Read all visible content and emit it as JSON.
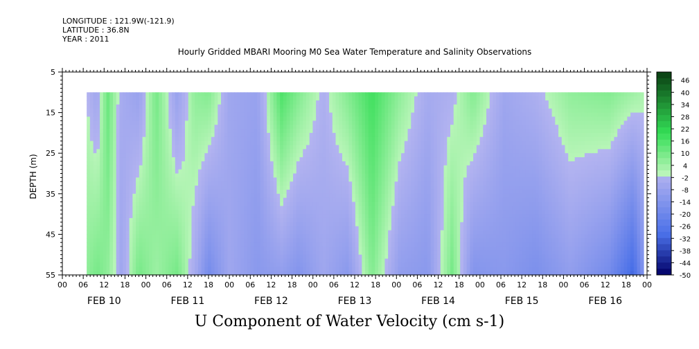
{
  "header": {
    "longitude": "LONGITUDE : 121.9W(-121.9)",
    "latitude": "LATITUDE : 36.8N",
    "year": "YEAR : 2011"
  },
  "chart_data": {
    "type": "heatmap",
    "title": "Hourly Gridded MBARI Mooring M0 Sea Water Temperature and Salinity Observations",
    "footer": "U Component of Water Velocity (cm s-1)",
    "ylabel": "DEPTH (m)",
    "xlim": [
      "2011-02-10 00:00",
      "2011-02-17 00:00"
    ],
    "ylim": [
      5,
      55
    ],
    "y_inverted": true,
    "y_ticks": [
      "5",
      "15",
      "25",
      "35",
      "45",
      "55"
    ],
    "x_hour_labels": [
      "00",
      "06",
      "12",
      "18",
      "00",
      "06",
      "12",
      "18",
      "00",
      "06",
      "12",
      "18",
      "00",
      "06",
      "12",
      "18",
      "00",
      "06",
      "12",
      "18",
      "00",
      "06",
      "12",
      "18",
      "00",
      "06",
      "12",
      "18",
      "00"
    ],
    "x_day_labels": [
      "FEB 10",
      "FEB 11",
      "FEB 12",
      "FEB 13",
      "FEB 14",
      "FEB 15",
      "FEB 16"
    ],
    "data_start": "2011-02-10 07:00",
    "data_end": "2011-02-16 23:00",
    "data_depth_range": [
      10,
      55
    ],
    "colorbar": {
      "min": -50,
      "max": 50,
      "step": 6,
      "labels": [
        "46",
        "40",
        "34",
        "28",
        "22",
        "16",
        "10",
        "4",
        "-2",
        "-8",
        "-14",
        "-20",
        "-26",
        "-32",
        "-38",
        "-44",
        "-50"
      ]
    },
    "colors": {
      "positive_light": "#b8f5b8",
      "positive_mid": "#33dd55",
      "positive_dark": "#0a3d12",
      "negative_light": "#b4b4f0",
      "negative_mid": "#4a70e8",
      "negative_dark": "#000066"
    },
    "column_profiles_cm_s": [
      {
        "time": "2011-02-10 07:00",
        "surface": 0,
        "bottom": 6
      },
      {
        "time": "2011-02-10 10:00",
        "surface": -6,
        "bottom": 10
      },
      {
        "time": "2011-02-10 13:00",
        "surface": 12,
        "bottom": 6
      },
      {
        "time": "2011-02-10 17:00",
        "surface": -4,
        "bottom": -6
      },
      {
        "time": "2011-02-10 22:00",
        "surface": -8,
        "bottom": 10
      },
      {
        "time": "2011-02-11 03:00",
        "surface": 10,
        "bottom": 4
      },
      {
        "time": "2011-02-11 09:00",
        "surface": -8,
        "bottom": 10
      },
      {
        "time": "2011-02-11 14:00",
        "surface": 6,
        "bottom": -4
      },
      {
        "time": "2011-02-11 18:00",
        "surface": 8,
        "bottom": -18
      },
      {
        "time": "2011-02-12 00:00",
        "surface": -6,
        "bottom": -6
      },
      {
        "time": "2011-02-12 08:00",
        "surface": -8,
        "bottom": -12
      },
      {
        "time": "2011-02-12 15:00",
        "surface": 16,
        "bottom": -10
      },
      {
        "time": "2011-02-12 20:00",
        "surface": 8,
        "bottom": -14
      },
      {
        "time": "2011-02-13 03:00",
        "surface": -2,
        "bottom": -6
      },
      {
        "time": "2011-02-13 10:00",
        "surface": 8,
        "bottom": -12
      },
      {
        "time": "2011-02-13 17:00",
        "surface": 18,
        "bottom": 8
      },
      {
        "time": "2011-02-14 01:00",
        "surface": 6,
        "bottom": -10
      },
      {
        "time": "2011-02-14 09:00",
        "surface": -4,
        "bottom": -12
      },
      {
        "time": "2011-02-14 16:00",
        "surface": -2,
        "bottom": 10
      },
      {
        "time": "2011-02-14 22:00",
        "surface": 8,
        "bottom": -14
      },
      {
        "time": "2011-02-15 07:00",
        "surface": -6,
        "bottom": -12
      },
      {
        "time": "2011-02-15 16:00",
        "surface": -2,
        "bottom": -16
      },
      {
        "time": "2011-02-16 02:00",
        "surface": 6,
        "bottom": -10
      },
      {
        "time": "2011-02-16 13:00",
        "surface": 8,
        "bottom": -18
      },
      {
        "time": "2011-02-16 20:00",
        "surface": 4,
        "bottom": -32
      },
      {
        "time": "2011-02-16 23:00",
        "surface": 2,
        "bottom": -14
      }
    ]
  }
}
